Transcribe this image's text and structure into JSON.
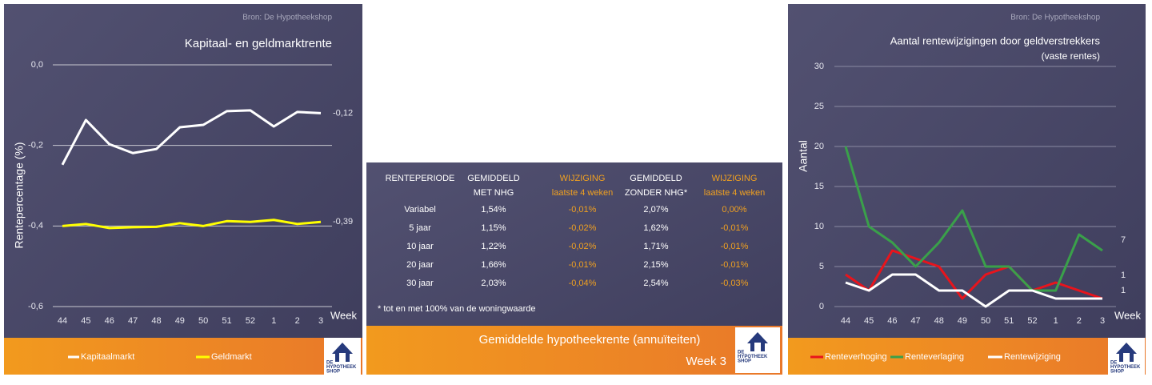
{
  "chart_data": [
    {
      "type": "line",
      "source": "Bron: De Hypotheekshop",
      "title": "Kapitaal- en geldmarktrente",
      "y_label": "Rentepercentage (%)",
      "x_label": "Week",
      "categories": [
        "44",
        "45",
        "46",
        "47",
        "48",
        "49",
        "50",
        "51",
        "52",
        "1",
        "2",
        "3"
      ],
      "ylim": [
        -0.6,
        0
      ],
      "yticks": [
        {
          "value": -0.6,
          "label": "-0,6"
        },
        {
          "value": -0.4,
          "label": "-0,4"
        },
        {
          "value": -0.2,
          "label": "-0,2"
        },
        {
          "value": 0,
          "label": "0,0"
        }
      ],
      "grid": true,
      "series": [
        {
          "name": "Kapitaalmarkt",
          "color": "#ffffff",
          "values": [
            -0.248,
            -0.137,
            -0.197,
            -0.219,
            -0.209,
            -0.155,
            -0.149,
            -0.115,
            -0.113,
            -0.153,
            -0.117,
            -0.12
          ],
          "value_labels": [
            null,
            null,
            null,
            null,
            null,
            null,
            null,
            null,
            null,
            null,
            null,
            "-0,12"
          ]
        },
        {
          "name": "Geldmarkt",
          "color": "#ffff00",
          "values": [
            -0.4,
            -0.395,
            -0.405,
            -0.403,
            -0.402,
            -0.393,
            -0.4,
            -0.388,
            -0.39,
            -0.385,
            -0.395,
            -0.39
          ],
          "value_labels": [
            null,
            null,
            null,
            null,
            null,
            null,
            null,
            null,
            null,
            null,
            null,
            "-0,39"
          ]
        }
      ]
    },
    {
      "type": "line",
      "source": "Bron: De Hypotheekshop",
      "title": "Aantal rentewijzigingen door geldverstrekkers",
      "subtitle": "(vaste rentes)",
      "y_label": "Aantal",
      "x_label": "Week",
      "categories": [
        "44",
        "45",
        "46",
        "47",
        "48",
        "49",
        "50",
        "51",
        "52",
        "1",
        "2",
        "3"
      ],
      "ylim": [
        0,
        30
      ],
      "yticks": [
        0,
        5,
        10,
        15,
        20,
        25,
        30
      ],
      "grid": true,
      "label_last": true,
      "series": [
        {
          "name": "Renteverhoging",
          "color": "#e8141c",
          "values": [
            4,
            2,
            7,
            6,
            5,
            1,
            4,
            5,
            2,
            3,
            2,
            1
          ]
        },
        {
          "name": "Renteverlaging",
          "color": "#3aa04a",
          "values": [
            20,
            10,
            8,
            5,
            8,
            12,
            5,
            5,
            2,
            2,
            9,
            7
          ]
        },
        {
          "name": "Rentewijziging",
          "color": "#ffffff",
          "values": [
            3,
            2,
            4,
            4,
            2,
            2,
            0,
            2,
            2,
            1,
            1,
            1
          ]
        }
      ]
    }
  ],
  "table": {
    "header": [
      [
        "RENTEPERIODE"
      ],
      [
        "GEMIDDELD",
        "MET NHG"
      ],
      [
        "WIJZIGING",
        "laatste 4 weken"
      ],
      [
        "GEMIDDELD",
        "ZONDER NHG*"
      ],
      [
        "WIJZIGING",
        "laatste 4 weken"
      ]
    ],
    "rows": [
      [
        "Variabel",
        "1,54%",
        "-0,01%",
        "2,07%",
        "0,00%"
      ],
      [
        "5 jaar",
        "1,15%",
        "-0,02%",
        "1,62%",
        "-0,01%"
      ],
      [
        "10 jaar",
        "1,22%",
        "-0,02%",
        "1,71%",
        "-0,01%"
      ],
      [
        "20 jaar",
        "1,66%",
        "-0,01%",
        "2,15%",
        "-0,01%"
      ],
      [
        "30 jaar",
        "2,03%",
        "-0,04%",
        "2,54%",
        "-0,03%"
      ]
    ],
    "footnote": "* tot en met 100% van de woningwaarde",
    "footer_title": "Gemiddelde hypotheekrente (annuïteiten)",
    "footer_week": "Week 3"
  },
  "logo": [
    "DE",
    "HYPOTHEEK",
    "SHOP"
  ]
}
